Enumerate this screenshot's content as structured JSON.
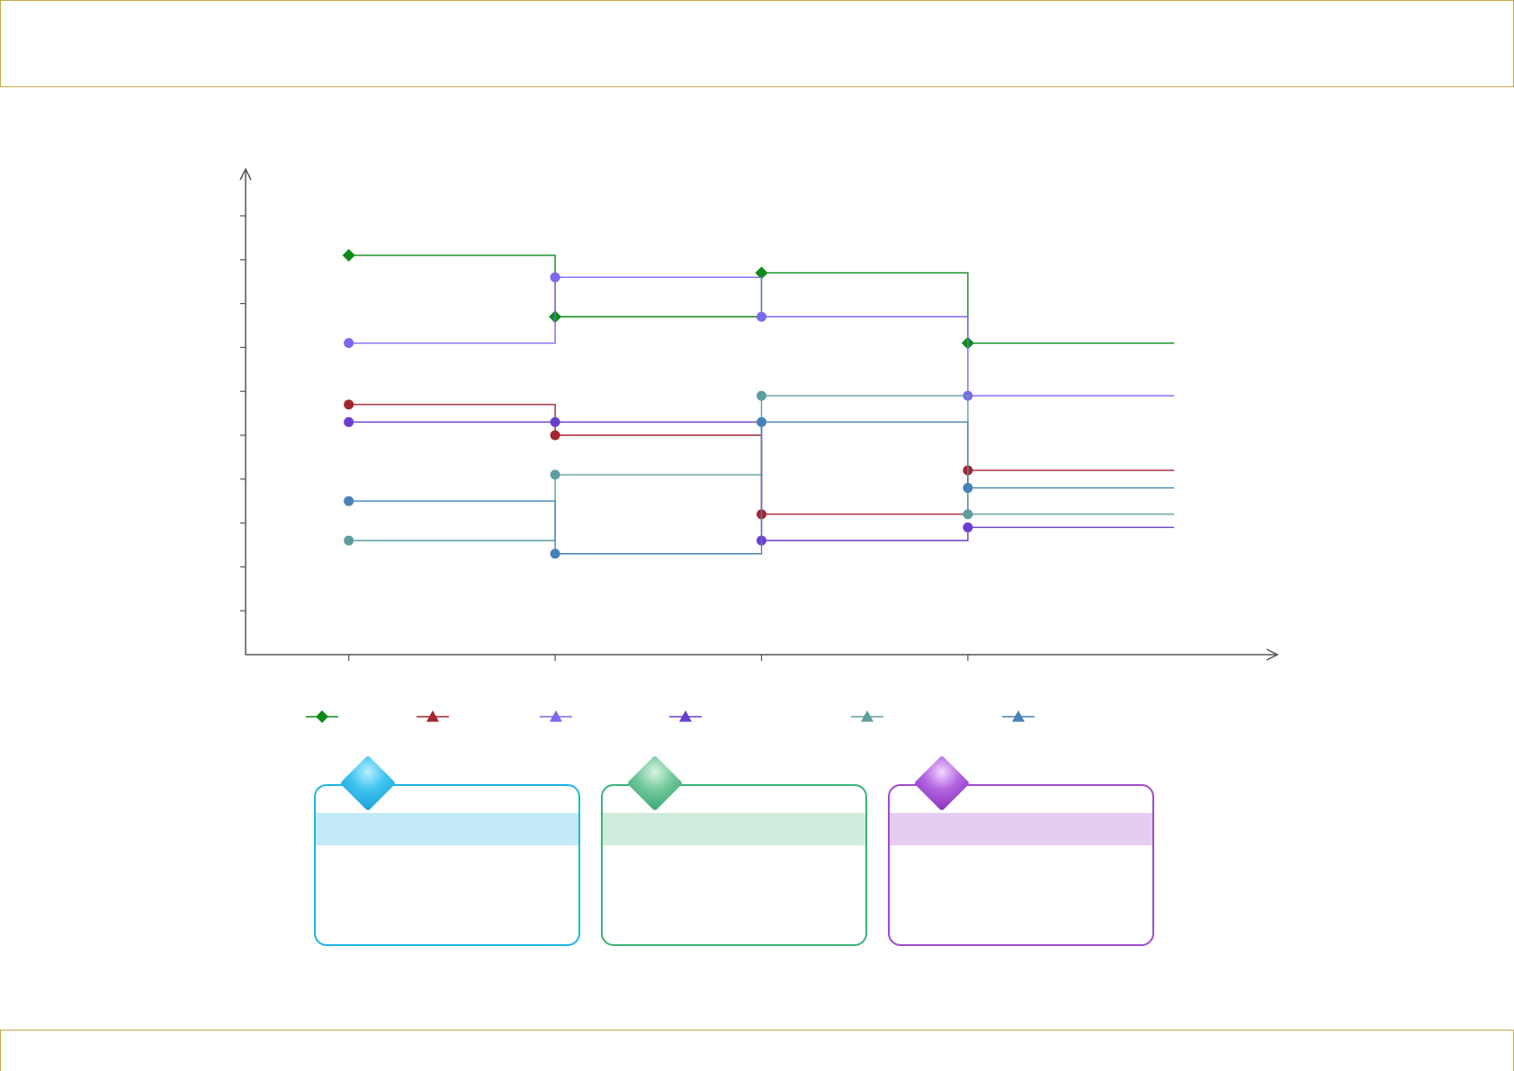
{
  "colors": {
    "frame": "#c9a54a",
    "axis": "#555555",
    "card_cyan": "#1fb6e0",
    "card_green": "#3cb37a",
    "card_purple": "#a04bd0"
  },
  "header": {
    "title": ""
  },
  "chart_data": {
    "type": "line",
    "step": true,
    "title": "",
    "xlabel": "",
    "ylabel": "",
    "grid": false,
    "legend_position": "bottom",
    "x": [
      1,
      2,
      3,
      4
    ],
    "xlim": [
      0.5,
      5.5
    ],
    "ylim": [
      0,
      10
    ],
    "series": [
      {
        "color": "#0a8a16",
        "marker": "diamond",
        "values": [
          9.1,
          7.7,
          8.7,
          7.1
        ]
      },
      {
        "color": "#a3262e",
        "marker": "circle",
        "values": [
          5.7,
          5.0,
          3.2,
          4.2
        ]
      },
      {
        "color": "#7b68ee",
        "marker": "circle",
        "values": [
          7.1,
          8.6,
          7.7,
          5.9
        ]
      },
      {
        "color": "#6a3fcf",
        "marker": "circle",
        "values": [
          5.3,
          5.3,
          2.6,
          2.9
        ]
      },
      {
        "color": "#5f9ea0",
        "marker": "circle",
        "values": [
          2.6,
          4.1,
          5.9,
          3.2
        ]
      },
      {
        "color": "#4682b4",
        "marker": "circle",
        "values": [
          3.5,
          2.3,
          5.3,
          3.8
        ]
      }
    ],
    "legend_markers": [
      "diamond",
      "triangle",
      "triangle",
      "triangle",
      "triangle",
      "triangle"
    ]
  },
  "cards": [
    {
      "color": "cyan",
      "title": "",
      "body": ""
    },
    {
      "color": "green",
      "title": "",
      "body": ""
    },
    {
      "color": "purple",
      "title": "",
      "body": ""
    }
  ]
}
